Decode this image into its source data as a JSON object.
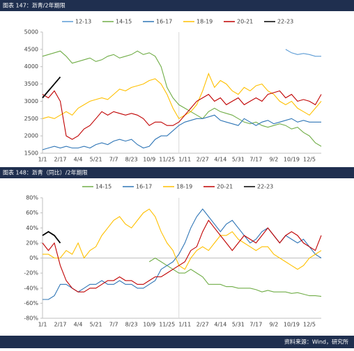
{
  "chart_data": [
    {
      "type": "line",
      "title": "图表 147：沥青/2年期限",
      "categories": [
        "1/1",
        null,
        null,
        "2/17",
        null,
        null,
        "4/4",
        null,
        null,
        "5/21",
        null,
        null,
        "7/7",
        null,
        null,
        "8/23",
        null,
        null,
        "10/9",
        null,
        null,
        "11/25",
        null,
        null,
        "1/11",
        null,
        null,
        "2/27",
        null,
        null,
        "4/14",
        null,
        null,
        "5/31",
        null,
        null,
        "7/17",
        null,
        null,
        "9/2",
        null,
        null,
        "10/19",
        null,
        null,
        "12/5",
        null,
        null
      ],
      "ylim": [
        1500,
        5000
      ],
      "yticks": [
        1500,
        2000,
        2500,
        3000,
        3500,
        4000,
        4500,
        5000
      ],
      "grid": false,
      "series": [
        {
          "name": "12-13",
          "color": "#5b9bd5",
          "values": [
            null,
            null,
            null,
            null,
            null,
            null,
            null,
            null,
            null,
            null,
            null,
            null,
            null,
            null,
            null,
            null,
            null,
            null,
            null,
            null,
            null,
            null,
            null,
            null,
            null,
            null,
            null,
            null,
            null,
            null,
            null,
            null,
            null,
            null,
            null,
            null,
            null,
            null,
            null,
            null,
            null,
            4500,
            4400,
            4350,
            4380,
            4350,
            4300,
            4300
          ]
        },
        {
          "name": "14-15",
          "color": "#70ad47",
          "values": [
            4300,
            4350,
            4400,
            4450,
            4300,
            4100,
            4150,
            4200,
            4250,
            4150,
            4200,
            4300,
            4350,
            4250,
            4300,
            4350,
            4450,
            4350,
            4400,
            4300,
            4000,
            3400,
            3100,
            2900,
            2800,
            2700,
            2600,
            2500,
            2700,
            2800,
            2700,
            2650,
            2600,
            2500,
            2400,
            2350,
            2400,
            2300,
            2250,
            2300,
            2350,
            2300,
            2200,
            2250,
            2100,
            2000,
            1800,
            1700
          ]
        },
        {
          "name": "16-17",
          "color": "#2e75b6",
          "values": [
            1600,
            1650,
            1700,
            1650,
            1700,
            1650,
            1650,
            1700,
            1650,
            1750,
            1800,
            1750,
            1850,
            1900,
            1850,
            1900,
            1750,
            1650,
            1700,
            1900,
            2000,
            2000,
            2150,
            2300,
            2400,
            2450,
            2500,
            2500,
            2550,
            2600,
            2450,
            2400,
            2350,
            2300,
            2500,
            2400,
            2300,
            2400,
            2450,
            2350,
            2400,
            2450,
            2500,
            2400,
            2450,
            2400,
            2400,
            2400
          ]
        },
        {
          "name": "18-19",
          "color": "#ffc000",
          "values": [
            2500,
            2550,
            2500,
            2600,
            2700,
            2600,
            2800,
            2900,
            3000,
            3050,
            3100,
            3050,
            3200,
            3350,
            3300,
            3400,
            3450,
            3500,
            3600,
            3650,
            3500,
            3200,
            2800,
            2500,
            2600,
            2700,
            2900,
            3300,
            3800,
            3400,
            3600,
            3500,
            3300,
            3200,
            3400,
            3300,
            3450,
            3500,
            3300,
            3200,
            3000,
            2900,
            3000,
            2800,
            2700,
            2600,
            2800,
            3000
          ]
        },
        {
          "name": "20-21",
          "color": "#c00000",
          "values": [
            3200,
            3100,
            3300,
            3000,
            2000,
            1900,
            2000,
            2200,
            2300,
            2500,
            2700,
            2600,
            2700,
            2650,
            2600,
            2650,
            2600,
            2500,
            2300,
            2400,
            2400,
            2300,
            2300,
            2400,
            2600,
            2800,
            3000,
            3100,
            3200,
            3000,
            3100,
            2900,
            3000,
            3100,
            2900,
            3000,
            3100,
            3000,
            3200,
            3250,
            3300,
            3100,
            3200,
            3000,
            3050,
            3000,
            2900,
            3200
          ]
        },
        {
          "name": "22-23",
          "color": "#000000",
          "values": [
            3100,
            3300,
            3500,
            3700,
            null,
            null,
            null,
            null,
            null,
            null,
            null,
            null,
            null,
            null,
            null,
            null,
            null,
            null,
            null,
            null,
            null,
            null,
            null,
            null,
            null,
            null,
            null,
            null,
            null,
            null,
            null,
            null,
            null,
            null,
            null,
            null,
            null,
            null,
            null,
            null,
            null,
            null,
            null,
            null,
            null,
            null,
            null,
            null
          ]
        }
      ]
    },
    {
      "type": "line",
      "title": "图表 148：沥青（同比）/2年期限",
      "categories": [
        "1/1",
        null,
        null,
        "2/17",
        null,
        null,
        "4/4",
        null,
        null,
        "5/21",
        null,
        null,
        "7/7",
        null,
        null,
        "8/23",
        null,
        null,
        "10/9",
        null,
        null,
        "11/25",
        null,
        null,
        "1/11",
        null,
        null,
        "2/27",
        null,
        null,
        "4/14",
        null,
        null,
        "5/31",
        null,
        null,
        "7/17",
        null,
        null,
        "9/2",
        null,
        null,
        "10/19",
        null,
        null,
        "12/5",
        null,
        null
      ],
      "ylim": [
        -80,
        80
      ],
      "yticks": [
        {
          "value": -80,
          "label": "-80%"
        },
        {
          "value": -60,
          "label": "-60%"
        },
        {
          "value": -40,
          "label": "-40%"
        },
        {
          "value": -20,
          "label": "-20%"
        },
        {
          "value": 0,
          "label": "0%"
        },
        {
          "value": 20,
          "label": "20%"
        },
        {
          "value": 40,
          "label": "40%"
        },
        {
          "value": 60,
          "label": "60%"
        },
        {
          "value": 80,
          "label": "80%"
        }
      ],
      "grid": false,
      "series": [
        {
          "name": "14-15",
          "color": "#70ad47",
          "values": [
            null,
            null,
            null,
            null,
            null,
            null,
            null,
            null,
            null,
            null,
            null,
            null,
            null,
            null,
            null,
            null,
            null,
            null,
            -5,
            0,
            -5,
            -10,
            -15,
            -20,
            -20,
            -15,
            -20,
            -25,
            -35,
            -35,
            -35,
            -38,
            -38,
            -40,
            -40,
            -40,
            -42,
            -45,
            -43,
            -45,
            -45,
            -45,
            -47,
            -46,
            -48,
            -50,
            -50,
            -51
          ]
        },
        {
          "name": "16-17",
          "color": "#2e75b6",
          "values": [
            -55,
            -55,
            -50,
            -35,
            -35,
            -40,
            -45,
            -40,
            -35,
            -35,
            -30,
            -35,
            -35,
            -30,
            -35,
            -35,
            -40,
            -40,
            -35,
            -30,
            -15,
            -10,
            -5,
            5,
            20,
            40,
            55,
            65,
            55,
            45,
            35,
            45,
            50,
            40,
            30,
            20,
            25,
            35,
            40,
            30,
            20,
            30,
            25,
            20,
            25,
            15,
            5,
            0
          ]
        },
        {
          "name": "18-19",
          "color": "#ffc000",
          "values": [
            5,
            5,
            0,
            0,
            10,
            5,
            20,
            0,
            10,
            15,
            30,
            40,
            50,
            55,
            45,
            40,
            50,
            60,
            65,
            55,
            35,
            20,
            10,
            -10,
            -15,
            0,
            10,
            15,
            10,
            20,
            30,
            30,
            35,
            25,
            20,
            15,
            10,
            15,
            15,
            5,
            0,
            -5,
            -10,
            -15,
            -10,
            0,
            5,
            10
          ]
        },
        {
          "name": "20-21",
          "color": "#c00000",
          "values": [
            20,
            10,
            20,
            -10,
            -30,
            -40,
            -45,
            -45,
            -40,
            -40,
            -35,
            -30,
            -30,
            -25,
            -30,
            -30,
            -35,
            -35,
            -30,
            -25,
            -25,
            -20,
            -15,
            -10,
            -5,
            10,
            15,
            35,
            50,
            40,
            30,
            20,
            10,
            20,
            30,
            25,
            20,
            30,
            40,
            30,
            20,
            30,
            35,
            30,
            20,
            15,
            10,
            30
          ]
        },
        {
          "name": "22-23",
          "color": "#000000",
          "values": [
            30,
            35,
            30,
            20,
            null,
            null,
            null,
            null,
            null,
            null,
            null,
            null,
            null,
            null,
            null,
            null,
            null,
            null,
            null,
            null,
            null,
            null,
            null,
            null,
            null,
            null,
            null,
            null,
            null,
            null,
            null,
            null,
            null,
            null,
            null,
            null,
            null,
            null,
            null,
            null,
            null,
            null,
            null,
            null,
            null,
            null,
            null,
            null
          ]
        }
      ]
    }
  ],
  "footer": "资料来源：Wind，研究所"
}
